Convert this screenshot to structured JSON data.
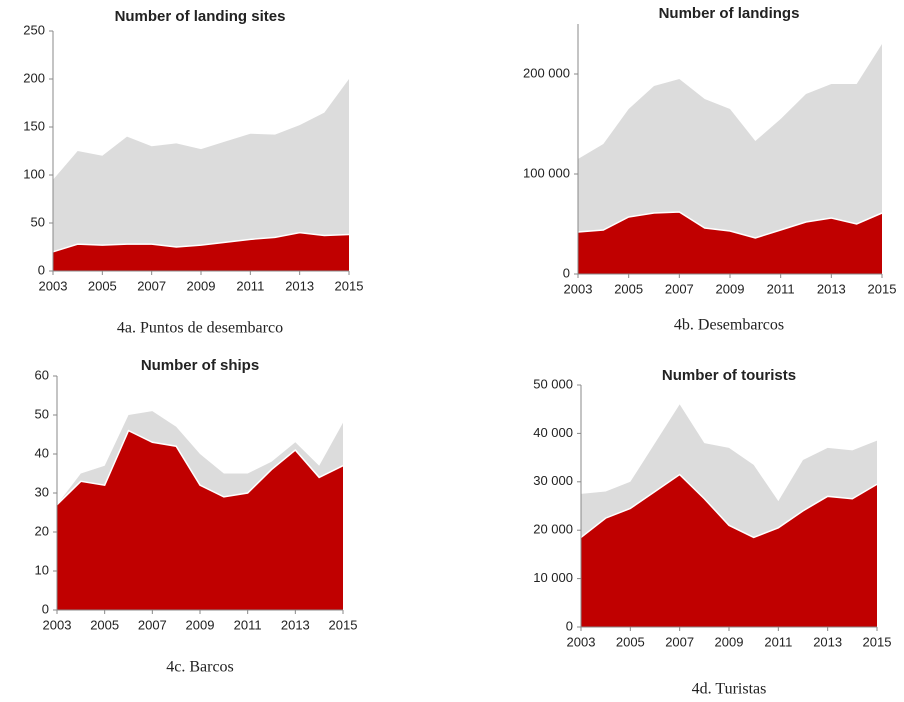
{
  "chart_data": [
    {
      "type": "area",
      "title": "Number of landing sites",
      "caption": "4a. Puntos de desembarco",
      "x": [
        2003,
        2004,
        2005,
        2006,
        2007,
        2008,
        2009,
        2010,
        2011,
        2012,
        2013,
        2014,
        2015
      ],
      "series": [
        {
          "color": "#dcdcdc",
          "values": [
            95,
            125,
            120,
            140,
            130,
            133,
            127,
            135,
            143,
            142,
            152,
            165,
            200
          ]
        },
        {
          "color": "#c00000",
          "values": [
            20,
            28,
            27,
            28,
            28,
            25,
            27,
            30,
            33,
            35,
            40,
            37,
            38
          ]
        }
      ],
      "xlim": [
        2003,
        2015
      ],
      "xticks": [
        2003,
        2005,
        2007,
        2009,
        2011,
        2013,
        2015
      ],
      "ylim": [
        0,
        250
      ],
      "yticks": [
        0,
        50,
        100,
        150,
        200,
        250
      ]
    },
    {
      "type": "area",
      "title": "Number of landings",
      "caption": "4b. Desembarcos",
      "x": [
        2003,
        2004,
        2005,
        2006,
        2007,
        2008,
        2009,
        2010,
        2011,
        2012,
        2013,
        2014,
        2015
      ],
      "series": [
        {
          "color": "#dcdcdc",
          "values": [
            115000,
            130000,
            165000,
            188000,
            195000,
            175000,
            165000,
            133000,
            155000,
            180000,
            190000,
            190000,
            230000
          ]
        },
        {
          "color": "#c00000",
          "values": [
            42000,
            44000,
            57000,
            61000,
            62000,
            46000,
            43000,
            36000,
            44000,
            52000,
            56000,
            50000,
            61000
          ]
        }
      ],
      "xlim": [
        2003,
        2015
      ],
      "xticks": [
        2003,
        2005,
        2007,
        2009,
        2011,
        2013,
        2015
      ],
      "ylim": [
        0,
        250000
      ],
      "yticks": [
        0,
        {
          "value": 100000,
          "label": "100 000"
        },
        {
          "value": 200000,
          "label": "200 000"
        }
      ]
    },
    {
      "type": "area",
      "title": "Number of ships",
      "caption": "4c. Barcos",
      "x": [
        2003,
        2004,
        2005,
        2006,
        2007,
        2008,
        2009,
        2010,
        2011,
        2012,
        2013,
        2014,
        2015
      ],
      "series": [
        {
          "color": "#dcdcdc",
          "values": [
            27,
            35,
            37,
            50,
            51,
            47,
            40,
            35,
            35,
            38,
            43,
            37,
            48
          ]
        },
        {
          "color": "#c00000",
          "values": [
            27,
            33,
            32,
            46,
            43,
            42,
            32,
            29,
            30,
            36,
            41,
            34,
            37
          ]
        }
      ],
      "xlim": [
        2003,
        2015
      ],
      "xticks": [
        2003,
        2005,
        2007,
        2009,
        2011,
        2013,
        2015
      ],
      "ylim": [
        0,
        60
      ],
      "yticks": [
        0,
        10,
        20,
        30,
        40,
        50,
        60
      ]
    },
    {
      "type": "area",
      "title": "Number of tourists",
      "caption": "4d. Turistas",
      "x": [
        2003,
        2004,
        2005,
        2006,
        2007,
        2008,
        2009,
        2010,
        2011,
        2012,
        2013,
        2014,
        2015
      ],
      "series": [
        {
          "color": "#dcdcdc",
          "values": [
            27500,
            28000,
            30000,
            38000,
            46000,
            38000,
            37000,
            33500,
            26000,
            34500,
            37000,
            36500,
            38500
          ]
        },
        {
          "color": "#c00000",
          "values": [
            18500,
            22500,
            24500,
            28000,
            31500,
            26500,
            21000,
            18500,
            20500,
            24000,
            27000,
            26500,
            29500
          ]
        }
      ],
      "xlim": [
        2003,
        2015
      ],
      "xticks": [
        2003,
        2005,
        2007,
        2009,
        2011,
        2013,
        2015
      ],
      "ylim": [
        0,
        50000
      ],
      "yticks": [
        0,
        {
          "value": 10000,
          "label": "10 000"
        },
        {
          "value": 20000,
          "label": "20 000"
        },
        {
          "value": 30000,
          "label": "30 000"
        },
        {
          "value": 40000,
          "label": "40 000"
        },
        {
          "value": 50000,
          "label": "50 000"
        }
      ]
    }
  ]
}
